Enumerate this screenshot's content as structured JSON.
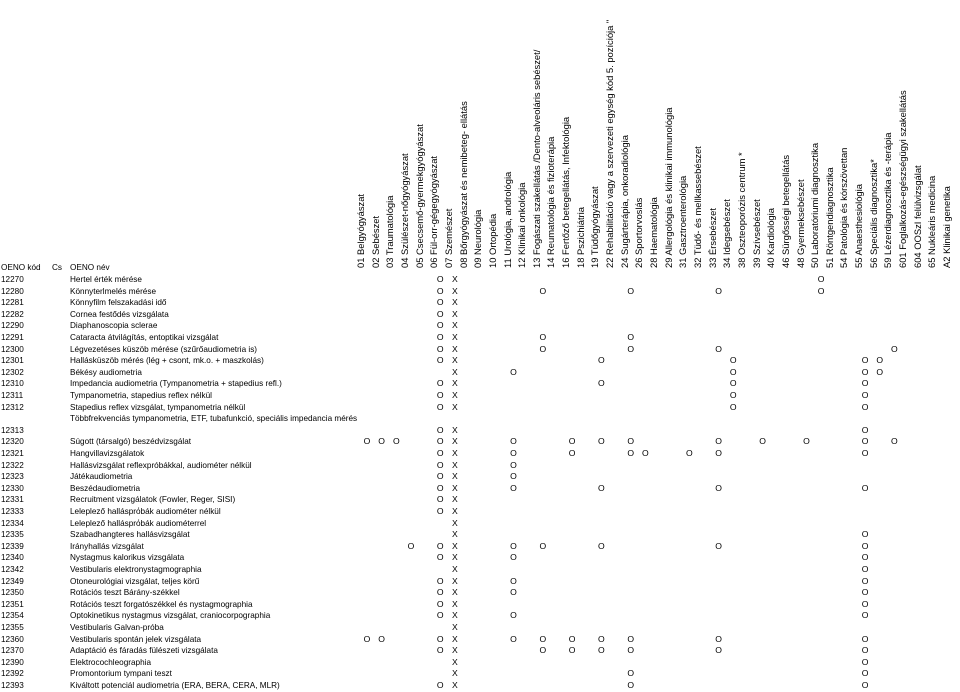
{
  "header": {
    "code_label": "OENO kód",
    "cs_label": "Cs",
    "name_label": "OENO név",
    "specialties": [
      "01 Belgyógyászat",
      "02 Sebészet",
      "03 Traumatológia",
      "04 Szülészet-nőgyógyászat",
      "05 Csecsemő-gyermekgyógyászat",
      "06 Fül-orr-gégegyógyászat",
      "07 Szemészet",
      "08 Bőrgyógyászat és nemibeteg- ellátás",
      "09 Neurológia",
      "10 Ortopédia",
      "11 Urológia, andrológia",
      "12 Klinikai onkológia",
      "13 Fogászati szakellátás /Dento-alveoláris sebészet/",
      "14 Reumatológia és fizioterápia",
      "16 Fertőző betegellátás, Infektológia",
      "18 Pszichiátria",
      "19 Tüdőgyógyászat",
      "22 Rehabilitáció vagy a szervezeti egység kód 5. pozíciója \"",
      "24 Sugárterápia, onkoradiológia",
      "26 Sportorvoslás",
      "28 Haematológia",
      "29 Allergológia és klinikai immunológia",
      "31 Gasztroenterológia",
      "32 Tüdő- és mellkassebészet",
      "33 Érsebészet",
      "34 Idegsebészet",
      "38 Oszteoporózis centrum *",
      "39 Szívsebészet",
      "40 Kardiológia",
      "46 Sürgősségi betegellátás",
      "48 Gyermeksebészet",
      "50 Laboratóriumi diagnosztika",
      "51 Röntgendiagnosztika",
      "54 Patológia és kórszövettan",
      "55 Anaesthesiológia",
      "56 Speciális diagnosztika*",
      "59 Lézerdiagnosztika és -terápia",
      "601 Foglalkozás-egészségügyi szakellátás",
      "604 OOSzI felülvizsgálat",
      "65 Nukleáris medicina",
      "A2 Klinikai genetika"
    ]
  },
  "rows": [
    {
      "code": "12270",
      "name": "Hertel érték mérése",
      "marks": {
        "5": "O",
        "6": "X",
        "31": "O"
      }
    },
    {
      "code": "12280",
      "name": "Könnyterlmelés mérése",
      "marks": {
        "5": "O",
        "6": "X",
        "12": "O",
        "18": "O",
        "24": "O",
        "31": "O"
      }
    },
    {
      "code": "12281",
      "name": "Könnyfilm felszakadási idő",
      "marks": {
        "5": "O",
        "6": "X"
      }
    },
    {
      "code": "12282",
      "name": "Cornea festődés vizsgálata",
      "marks": {
        "5": "O",
        "6": "X"
      }
    },
    {
      "code": "12290",
      "name": "Diaphanoscopia sclerae",
      "marks": {
        "5": "O",
        "6": "X"
      }
    },
    {
      "code": "12291",
      "name": "Cataracta átvilágítás, entoptikai vizsgálat",
      "marks": {
        "5": "O",
        "6": "X",
        "12": "O",
        "18": "O"
      }
    },
    {
      "code": "12300",
      "name": "Légvezetéses küszöb mérése (szűrőaudiometria is)",
      "marks": {
        "5": "O",
        "6": "X",
        "12": "O",
        "18": "O",
        "24": "O",
        "36": "O"
      }
    },
    {
      "code": "12301",
      "name": "Hallásküszöb mérés (lég + csont, mk.o. + maszkolás)",
      "marks": {
        "5": "O",
        "6": "X",
        "16": "O",
        "25": "O",
        "34": "O",
        "35": "O"
      }
    },
    {
      "code": "12302",
      "name": "Békésy audiometria",
      "marks": {
        "6": "X",
        "10": "O",
        "25": "O",
        "34": "O",
        "35": "O"
      }
    },
    {
      "code": "12310",
      "name": "Impedancia audiometria (Tympanometria + stapedius refl.)",
      "marks": {
        "5": "O",
        "6": "X",
        "16": "O",
        "25": "O",
        "34": "O"
      }
    },
    {
      "code": "12311",
      "name": "Tympanometria, stapedius reflex nélkül",
      "marks": {
        "5": "O",
        "6": "X",
        "25": "O",
        "34": "O"
      }
    },
    {
      "code": "12312",
      "name": "Stapedius reflex vizsgálat, tympanometria nélkül",
      "marks": {
        "5": "O",
        "6": "X",
        "25": "O",
        "34": "O"
      }
    },
    {
      "code": "12313",
      "name": "Többfrekvenciás tympanometria, ETF, tubafunkció, speciális impedancia mérés",
      "marks": {
        "5": "O",
        "6": "X",
        "34": "O"
      },
      "tall": true
    },
    {
      "code": "12320",
      "name": "Súgott (társalgó) beszédvizsgálat",
      "marks": {
        "0": "O",
        "1": "O",
        "2": "O",
        "5": "O",
        "6": "X",
        "10": "O",
        "14": "O",
        "16": "O",
        "18": "O",
        "24": "O",
        "27": "O",
        "30": "O",
        "34": "O",
        "36": "O"
      }
    },
    {
      "code": "12321",
      "name": "Hangvillavizsgálatok",
      "marks": {
        "5": "O",
        "6": "X",
        "10": "O",
        "14": "O",
        "18": "O",
        "19": "O",
        "22": "O",
        "24": "O",
        "34": "O"
      }
    },
    {
      "code": "12322",
      "name": "Hallásvizsgálat reflexpróbákkal, audiométer nélkül",
      "marks": {
        "5": "O",
        "6": "X",
        "10": "O"
      }
    },
    {
      "code": "12323",
      "name": "Játékaudiometria",
      "marks": {
        "5": "O",
        "6": "X",
        "10": "O"
      }
    },
    {
      "code": "12330",
      "name": "Beszédaudiometria",
      "marks": {
        "5": "O",
        "6": "X",
        "10": "O",
        "16": "O",
        "24": "O",
        "34": "O"
      }
    },
    {
      "code": "12331",
      "name": "Recruitment vizsgálatok (Fowler, Reger, SISI)",
      "marks": {
        "5": "O",
        "6": "X"
      }
    },
    {
      "code": "12333",
      "name": "Leleplező hallásprόbák audiométer nélkül",
      "marks": {
        "5": "O",
        "6": "X"
      }
    },
    {
      "code": "12334",
      "name": "Leleplező hallásprόbák audiométerrel",
      "marks": {
        "6": "X"
      }
    },
    {
      "code": "12335",
      "name": "Szabadhangteres hallásvizsgálat",
      "marks": {
        "6": "X",
        "34": "O"
      }
    },
    {
      "code": "12339",
      "name": "Irányhallás vizsgálat",
      "marks": {
        "3": "O",
        "5": "O",
        "6": "X",
        "10": "O",
        "12": "O",
        "16": "O",
        "24": "O",
        "34": "O"
      }
    },
    {
      "code": "12340",
      "name": "Nystagmus kalorikus vizsgálata",
      "marks": {
        "5": "O",
        "6": "X",
        "10": "O",
        "34": "O"
      }
    },
    {
      "code": "12342",
      "name": "Vestibularis elektronystagmographia",
      "marks": {
        "6": "X",
        "34": "O"
      }
    },
    {
      "code": "12349",
      "name": "Otoneurológiai vizsgálat, teljes körű",
      "marks": {
        "5": "O",
        "6": "X",
        "10": "O",
        "34": "O"
      }
    },
    {
      "code": "12350",
      "name": "Rotációs teszt Bárány-székkel",
      "marks": {
        "5": "O",
        "6": "X",
        "10": "O",
        "34": "O"
      }
    },
    {
      "code": "12351",
      "name": "Rotációs teszt forgatószékkel és nystagmographia",
      "marks": {
        "5": "O",
        "6": "X",
        "34": "O"
      }
    },
    {
      "code": "12354",
      "name": "Optokinetikus nystagmus vizsgálat, craniocorpographia",
      "marks": {
        "5": "O",
        "6": "X",
        "10": "O",
        "34": "O"
      }
    },
    {
      "code": "12355",
      "name": "Vestibularis Galvan-próba",
      "marks": {
        "6": "X"
      }
    },
    {
      "code": "12360",
      "name": "Vestibularis spontán jelek vizsgálata",
      "marks": {
        "0": "O",
        "1": "O",
        "5": "O",
        "6": "X",
        "10": "O",
        "12": "O",
        "14": "O",
        "16": "O",
        "18": "O",
        "24": "O",
        "34": "O"
      }
    },
    {
      "code": "12370",
      "name": "Adaptáció és fáradás fülészeti vizsgálata",
      "marks": {
        "5": "O",
        "6": "X",
        "12": "O",
        "14": "O",
        "16": "O",
        "18": "O",
        "24": "O",
        "34": "O"
      }
    },
    {
      "code": "12390",
      "name": "Elektrocochleographia",
      "marks": {
        "6": "X",
        "34": "O"
      }
    },
    {
      "code": "12392",
      "name": "Promontorium tympani teszt",
      "marks": {
        "6": "X",
        "18": "O",
        "34": "O"
      }
    },
    {
      "code": "12393",
      "name": "Kiváltott potenciál audiometria (ERA, BERA, CERA, MLR)",
      "marks": {
        "5": "O",
        "6": "X",
        "18": "O",
        "34": "O"
      }
    }
  ]
}
